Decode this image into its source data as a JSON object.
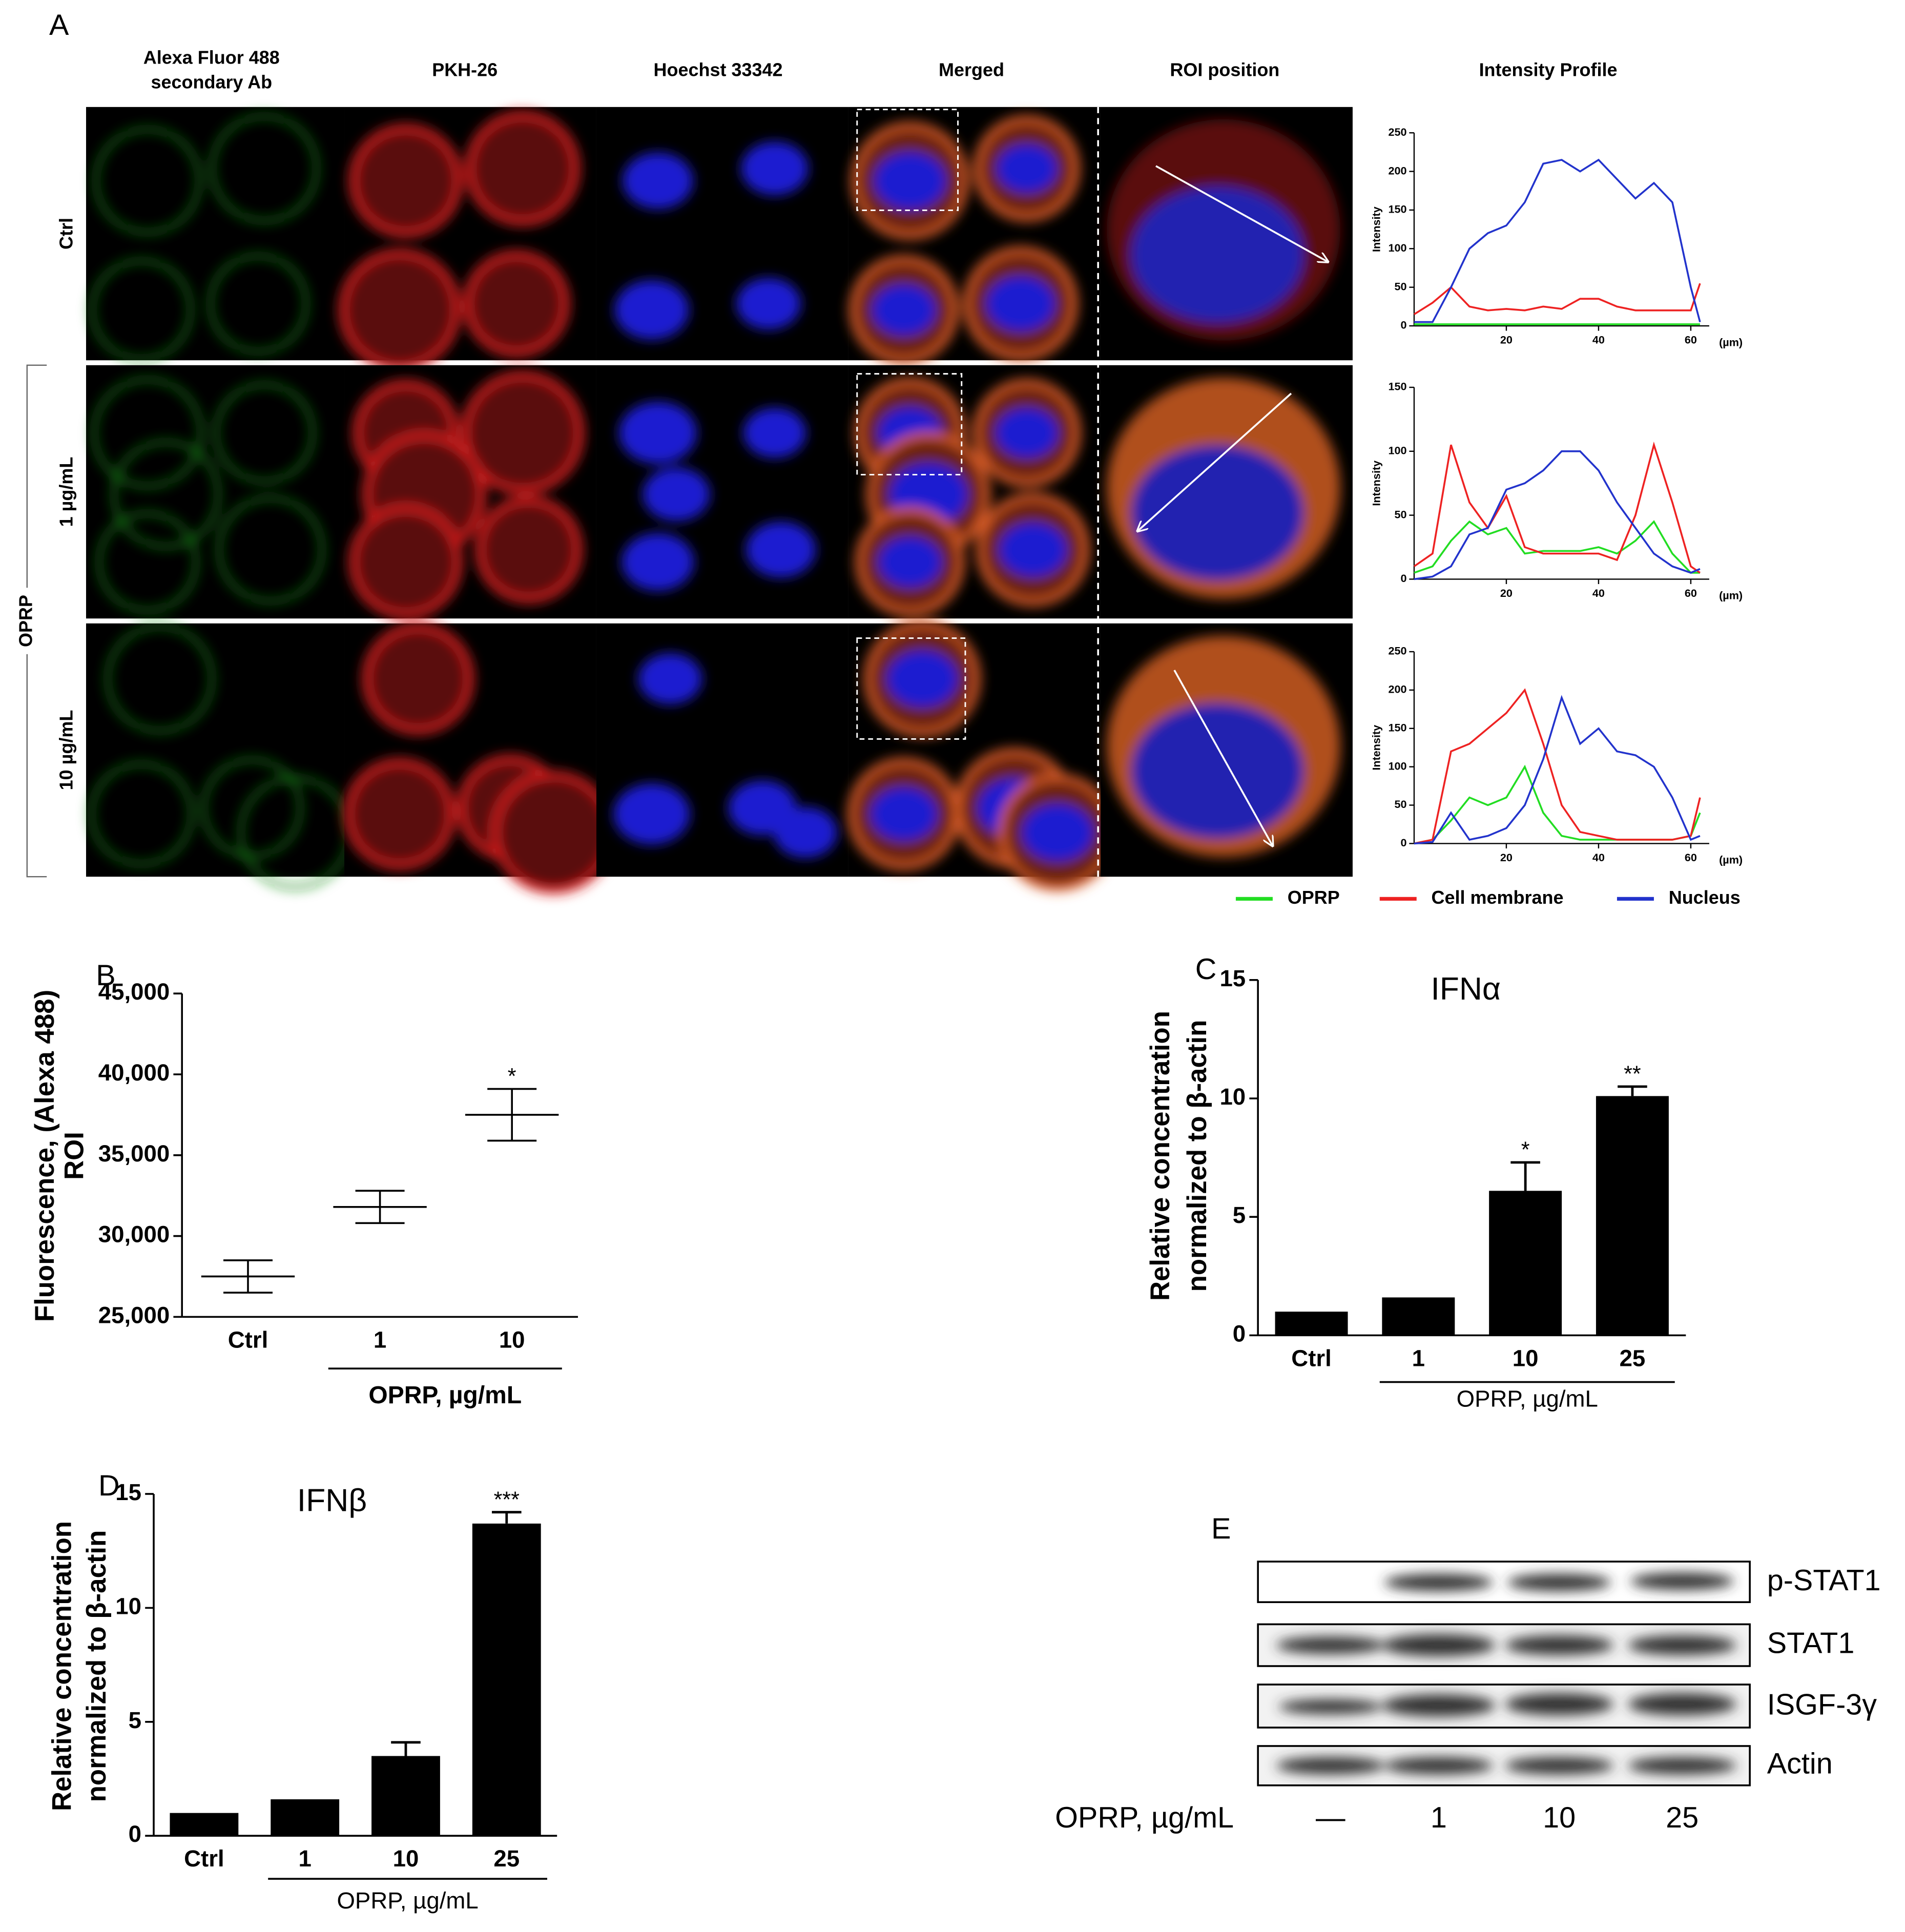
{
  "panel_a": {
    "letter": "A",
    "columns": [
      [
        "Alexa Fluor 488",
        "secondary Ab"
      ],
      [
        "PKH-26"
      ],
      [
        "Hoechst 33342"
      ],
      [
        "Merged"
      ],
      [
        "ROI position"
      ],
      [
        "Intensity Profile"
      ]
    ],
    "rows": [
      "Ctrl",
      "1 µg/mL",
      "10 µg/mL"
    ],
    "group": "OPRP"
  },
  "chart_data": [
    {
      "type": "line",
      "ylabel": "Intensity",
      "xlabel": "(µm)",
      "x": [
        0,
        4,
        8,
        12,
        16,
        20,
        24,
        28,
        32,
        36,
        40,
        44,
        48,
        52,
        56,
        60,
        62
      ],
      "xlim": [
        0,
        64
      ],
      "xticks": [
        20,
        40,
        60
      ],
      "ylim": [
        0,
        250
      ],
      "yticks": [
        0,
        50,
        100,
        150,
        200,
        250
      ],
      "series": [
        {
          "name": "OPRP",
          "color": "#22dd22",
          "values": [
            2,
            2,
            2,
            2,
            2,
            2,
            2,
            2,
            2,
            2,
            2,
            2,
            2,
            2,
            2,
            2,
            2
          ]
        },
        {
          "name": "Cell membrane",
          "color": "#ee2222",
          "values": [
            15,
            30,
            50,
            25,
            20,
            22,
            20,
            25,
            22,
            35,
            35,
            25,
            20,
            20,
            20,
            20,
            55
          ]
        },
        {
          "name": "Nucleus",
          "color": "#2233cc",
          "values": [
            5,
            5,
            50,
            100,
            120,
            130,
            160,
            210,
            215,
            200,
            215,
            190,
            165,
            185,
            160,
            50,
            5
          ]
        }
      ]
    },
    {
      "type": "line",
      "ylabel": "Intensity",
      "xlabel": "(µm)",
      "x": [
        0,
        4,
        8,
        12,
        16,
        20,
        24,
        28,
        32,
        36,
        40,
        44,
        48,
        52,
        56,
        60,
        62
      ],
      "xlim": [
        0,
        64
      ],
      "xticks": [
        20,
        40,
        60
      ],
      "ylim": [
        0,
        150
      ],
      "yticks": [
        0,
        50,
        100,
        150
      ],
      "series": [
        {
          "color": "#22dd22",
          "values": [
            5,
            10,
            30,
            45,
            35,
            40,
            20,
            22,
            22,
            22,
            25,
            20,
            30,
            45,
            20,
            5,
            5
          ]
        },
        {
          "color": "#ee2222",
          "values": [
            10,
            20,
            105,
            60,
            40,
            65,
            25,
            20,
            20,
            20,
            20,
            15,
            50,
            105,
            60,
            10,
            5
          ]
        },
        {
          "color": "#2233cc",
          "values": [
            0,
            2,
            10,
            35,
            40,
            70,
            75,
            85,
            100,
            100,
            85,
            60,
            40,
            20,
            10,
            5,
            8
          ]
        }
      ]
    },
    {
      "type": "line",
      "ylabel": "Intensity",
      "xlabel": "(µm)",
      "x": [
        0,
        4,
        8,
        12,
        16,
        20,
        24,
        28,
        32,
        36,
        40,
        44,
        48,
        52,
        56,
        60,
        62
      ],
      "xlim": [
        0,
        64
      ],
      "xticks": [
        20,
        40,
        60
      ],
      "ylim": [
        0,
        250
      ],
      "yticks": [
        0,
        50,
        100,
        150,
        200,
        250
      ],
      "series": [
        {
          "color": "#22dd22",
          "values": [
            0,
            5,
            30,
            60,
            50,
            60,
            100,
            40,
            10,
            5,
            5,
            5,
            5,
            5,
            5,
            10,
            40
          ]
        },
        {
          "color": "#ee2222",
          "values": [
            0,
            5,
            120,
            130,
            150,
            170,
            200,
            130,
            50,
            15,
            10,
            5,
            5,
            5,
            5,
            10,
            60
          ]
        },
        {
          "color": "#2233cc",
          "values": [
            0,
            2,
            40,
            5,
            10,
            20,
            50,
            110,
            190,
            130,
            150,
            120,
            115,
            100,
            60,
            5,
            10
          ]
        }
      ]
    },
    {
      "type": "mean_sd",
      "panel": "B",
      "ylabel": [
        "Fluorescence, (Alexa 488)",
        "ROI"
      ],
      "xlabel": "OPRP, µg/mL",
      "categories": [
        "Ctrl",
        "1",
        "10"
      ],
      "values": [
        27500,
        31800,
        37500
      ],
      "errors": [
        1000,
        1000,
        1600
      ],
      "annotations": [
        null,
        null,
        "*"
      ],
      "color": "#000000",
      "ylim": [
        25000,
        45000
      ],
      "yticks": [
        {
          "value": 25000,
          "label": "25,000"
        },
        {
          "value": 30000,
          "label": "30,000"
        },
        {
          "value": 35000,
          "label": "35,000"
        },
        {
          "value": 40000,
          "label": "40,000"
        },
        {
          "value": 45000,
          "label": "45,000"
        }
      ]
    },
    {
      "type": "bar",
      "panel": "C",
      "title": "IFNα",
      "ylabel": [
        "Relative concentration",
        "normalized to β-actin"
      ],
      "xlabel": "OPRP, µg/mL",
      "categories": [
        "Ctrl",
        "1",
        "10",
        "25"
      ],
      "values": [
        1,
        1.6,
        6.1,
        10.1
      ],
      "errors": [
        null,
        null,
        1.2,
        0.4
      ],
      "annotations": [
        null,
        null,
        "*",
        "**"
      ],
      "color": "#000000",
      "ylim": [
        0,
        15
      ],
      "yticks": [
        0,
        5,
        10,
        15
      ]
    },
    {
      "type": "bar",
      "panel": "D",
      "title": "IFNβ",
      "ylabel": [
        "Relative concentration",
        "normalized to β-actin"
      ],
      "xlabel": "OPRP, µg/mL",
      "categories": [
        "Ctrl",
        "1",
        "10",
        "25"
      ],
      "values": [
        1,
        1.6,
        3.5,
        13.7
      ],
      "errors": [
        null,
        null,
        0.6,
        0.5
      ],
      "annotations": [
        null,
        null,
        null,
        "***"
      ],
      "color": "#000000",
      "ylim": [
        0,
        15
      ],
      "yticks": [
        0,
        5,
        10,
        15
      ]
    }
  ],
  "panel_e": {
    "letter": "E",
    "proteins": [
      "p-STAT1",
      "STAT1",
      "ISGF-3γ",
      "Actin"
    ],
    "treatment": "OPRP, µg/mL",
    "lanes": [
      "—",
      "1",
      "10",
      "25"
    ]
  }
}
